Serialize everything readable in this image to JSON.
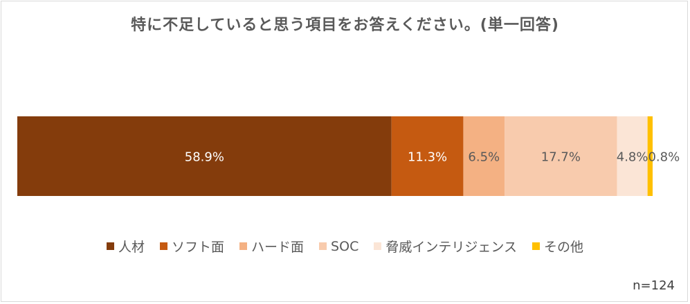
{
  "chart_data": {
    "type": "bar",
    "orientation": "horizontal-stacked-100",
    "title": "特に不足していると思う項目をお答えください。(単一回答)",
    "sample_note": "n=124",
    "legend_position": "bottom",
    "series": [
      {
        "name": "人材",
        "value": 58.9,
        "label": "58.9%",
        "color": "#843C0C",
        "label_color": "#ffffff"
      },
      {
        "name": "ソフト面",
        "value": 11.3,
        "label": "11.3%",
        "color": "#C55A11",
        "label_color": "#ffffff"
      },
      {
        "name": "ハード面",
        "value": 6.5,
        "label": "6.5%",
        "color": "#F4B183",
        "label_color": "#595959"
      },
      {
        "name": "SOC",
        "value": 17.7,
        "label": "17.7%",
        "color": "#F8CBAD",
        "label_color": "#595959"
      },
      {
        "name": "脅威インテリジェンス",
        "value": 4.8,
        "label": "4.8%",
        "color": "#FBE5D6",
        "label_color": "#595959"
      },
      {
        "name": "その他",
        "value": 0.8,
        "label": "0.8%",
        "color": "#FFC000",
        "label_color": "#595959"
      }
    ]
  }
}
